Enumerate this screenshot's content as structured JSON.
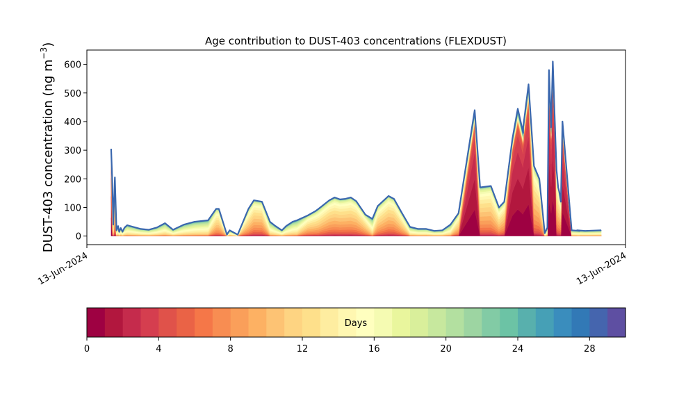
{
  "figure": {
    "title": "Age contribution to DUST-403 concentrations (FLEXDUST)",
    "ylabel_main": "DUST-403 concentration (ng m",
    "ylabel_sup": "−3",
    "ylabel_close": ")"
  },
  "chart_data": {
    "type": "area",
    "title": "Age contribution to DUST-403 concentrations (FLEXDUST)",
    "ylabel": "DUST-403 concentration (ng m−3)",
    "ylim": [
      -30,
      650
    ],
    "x_tick_labels": [
      "13-Jun-2024",
      "13-Jun-2024"
    ],
    "y_ticks": [
      0,
      100,
      200,
      300,
      400,
      500,
      600
    ],
    "x_positions_normalized": [
      0.045,
      0.047,
      0.049,
      0.052,
      0.055,
      0.058,
      0.06,
      0.063,
      0.066,
      0.07,
      0.075,
      0.08,
      0.09,
      0.1,
      0.115,
      0.13,
      0.145,
      0.16,
      0.18,
      0.2,
      0.21,
      0.225,
      0.24,
      0.245,
      0.26,
      0.265,
      0.27,
      0.28,
      0.3,
      0.31,
      0.325,
      0.34,
      0.35,
      0.362,
      0.37,
      0.382,
      0.39,
      0.41,
      0.425,
      0.43,
      0.45,
      0.46,
      0.47,
      0.48,
      0.49,
      0.5,
      0.517,
      0.53,
      0.54,
      0.56,
      0.57,
      0.585,
      0.6,
      0.615,
      0.63,
      0.645,
      0.66,
      0.675,
      0.69,
      0.72,
      0.73,
      0.75,
      0.765,
      0.775,
      0.79,
      0.8,
      0.81,
      0.81,
      0.82,
      0.83,
      0.84,
      0.85,
      0.855,
      0.858,
      0.862,
      0.865,
      0.87,
      0.872,
      0.875,
      0.877,
      0.88,
      0.883,
      0.9,
      0.915,
      0.91,
      0.925,
      0.955
    ],
    "totals": [
      305,
      200,
      40,
      205,
      20,
      35,
      15,
      28,
      15,
      30,
      38,
      35,
      30,
      25,
      22,
      30,
      45,
      22,
      40,
      50,
      52,
      55,
      95,
      95,
      5,
      20,
      15,
      5,
      95,
      125,
      120,
      50,
      35,
      20,
      35,
      50,
      55,
      72,
      88,
      95,
      125,
      135,
      128,
      130,
      135,
      122,
      75,
      60,
      105,
      140,
      130,
      80,
      32,
      25,
      25,
      18,
      20,
      40,
      80,
      440,
      170,
      175,
      100,
      120,
      340,
      445,
      360,
      380,
      530,
      245,
      200,
      10,
      30,
      580,
      380,
      610,
      330,
      230,
      170,
      155,
      120,
      400,
      20,
      18,
      20,
      18,
      20
    ],
    "colorbar": {
      "label": "Days",
      "range": [
        0,
        30
      ],
      "ticks": [
        0,
        4,
        8,
        12,
        16,
        20,
        24,
        28
      ],
      "bins": 30,
      "colors": [
        "#9e0142",
        "#b2173e",
        "#c52b4c",
        "#d53e4f",
        "#e0524a",
        "#ea6346",
        "#f57748",
        "#f88d52",
        "#fa9f5a",
        "#fdb163",
        "#fdc374",
        "#fed482",
        "#fee08b",
        "#feeda0",
        "#fff7b1",
        "#ffffbf",
        "#f5fbb2",
        "#e9f69d",
        "#d9ef9b",
        "#c7e89e",
        "#b3e0a0",
        "#9dd5a2",
        "#82cba5",
        "#6cc3a5",
        "#58b0ad",
        "#46a0b6",
        "#3a8dbd",
        "#3279b6",
        "#4565ae",
        "#5e4fa2"
      ]
    }
  }
}
